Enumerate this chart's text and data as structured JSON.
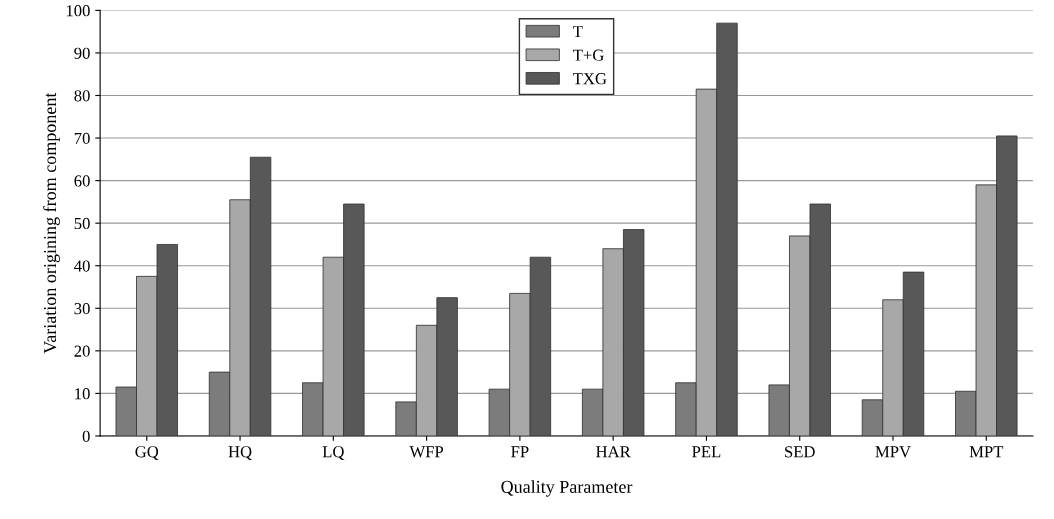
{
  "chart_data": {
    "type": "bar",
    "xlabel": "Quality Parameter",
    "ylabel": "Variation origining from component",
    "categories": [
      "GQ",
      "HQ",
      "LQ",
      "WFP",
      "FP",
      "HAR",
      "PEL",
      "SED",
      "MPV",
      "MPT"
    ],
    "series": [
      {
        "name": "T",
        "color": "#7c7c7c",
        "values": [
          11.5,
          15,
          12.5,
          8,
          11,
          11,
          12.5,
          12,
          8.5,
          10.5
        ]
      },
      {
        "name": "T+G",
        "color": "#a8a8a8",
        "values": [
          37.5,
          55.5,
          42,
          26,
          33.5,
          44,
          81.5,
          47,
          32,
          59
        ]
      },
      {
        "name": "TXG",
        "color": "#585858",
        "values": [
          45,
          65.5,
          54.5,
          32.5,
          42,
          48.5,
          97,
          54.5,
          38.5,
          70.5
        ]
      }
    ],
    "ylim": [
      0,
      100
    ],
    "yticks": [
      0,
      10,
      20,
      30,
      40,
      50,
      60,
      70,
      80,
      90,
      100
    ],
    "grid": "y",
    "legend": "top"
  }
}
